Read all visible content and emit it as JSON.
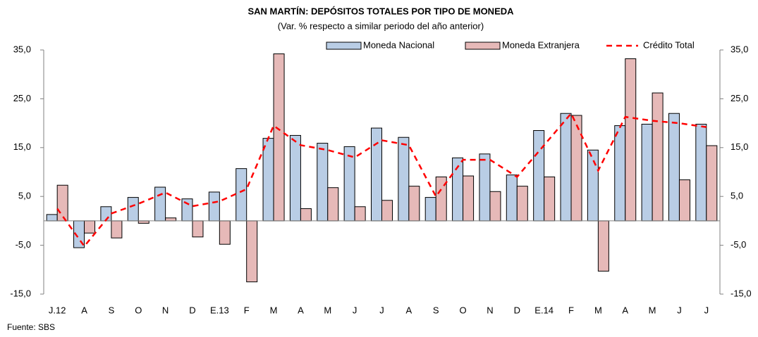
{
  "chart_data": {
    "type": "bar",
    "title": "SAN MARTÍN: DEPÓSITOS TOTALES POR TIPO DE MONEDA",
    "subtitle": "(Var. % respecto a similar periodo del año anterior)",
    "source": "Fuente: SBS",
    "categories": [
      "J.12",
      "A",
      "S",
      "O",
      "N",
      "D",
      "E.13",
      "F",
      "M",
      "A",
      "M",
      "J",
      "J",
      "A",
      "S",
      "O",
      "N",
      "D",
      "E.14",
      "F",
      "M",
      "A",
      "M",
      "J",
      "J"
    ],
    "series": [
      {
        "name": "Moneda Nacional",
        "color": "#b9cde5",
        "values": [
          1.3,
          -5.5,
          2.9,
          4.8,
          6.9,
          4.5,
          5.9,
          10.7,
          16.9,
          17.5,
          15.9,
          15.2,
          19.0,
          17.1,
          4.8,
          12.9,
          13.7,
          9.4,
          18.5,
          22.0,
          14.5,
          19.5,
          19.8,
          22.0,
          19.8
        ]
      },
      {
        "name": "Moneda Extranjera",
        "color": "#e6b9b8",
        "values": [
          7.3,
          -2.5,
          -3.5,
          -0.5,
          0.6,
          -3.3,
          -4.8,
          -12.5,
          34.2,
          2.5,
          6.8,
          2.9,
          4.2,
          7.1,
          9.0,
          9.2,
          6.0,
          7.1,
          9.0,
          21.6,
          -10.3,
          33.2,
          26.2,
          8.4,
          15.4
        ]
      },
      {
        "name": "Crédito Total",
        "color": "#ff0000",
        "type": "line",
        "axis": "y2",
        "values": [
          2.5,
          -5.2,
          1.5,
          3.5,
          5.8,
          3.0,
          4.0,
          6.5,
          19.5,
          15.5,
          14.5,
          13.0,
          16.5,
          15.5,
          5.0,
          12.5,
          12.5,
          9.0,
          15.5,
          22.0,
          10.3,
          21.3,
          20.5,
          20.0,
          19.2
        ]
      }
    ],
    "ylim": [
      -15,
      35
    ],
    "yticks": [
      {
        "value": -15,
        "label": "-15,0"
      },
      {
        "value": -5,
        "label": "-5,0"
      },
      {
        "value": 5,
        "label": "5,0"
      },
      {
        "value": 15,
        "label": "15,0"
      },
      {
        "value": 25,
        "label": "25,0"
      },
      {
        "value": 35,
        "label": "35,0"
      }
    ],
    "y2lim": [
      -15,
      35
    ],
    "y2ticks": [
      {
        "value": -15,
        "label": "-15,0"
      },
      {
        "value": -5,
        "label": "-5,0"
      },
      {
        "value": 5,
        "label": "5,0"
      },
      {
        "value": 15,
        "label": "15,0"
      },
      {
        "value": 25,
        "label": "25,0"
      },
      {
        "value": 35,
        "label": "35,0"
      }
    ],
    "grid": false,
    "legend": "top-right"
  }
}
